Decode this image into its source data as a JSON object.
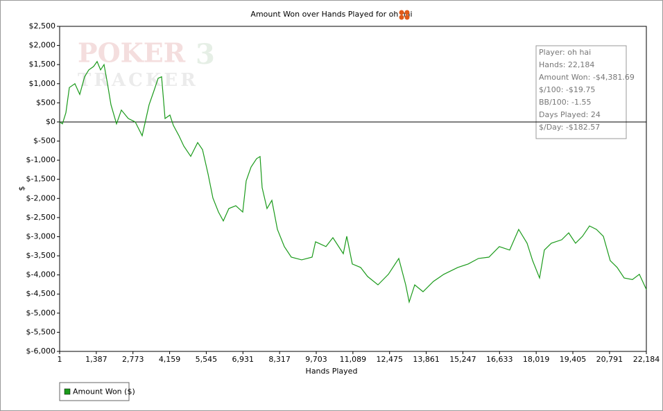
{
  "chart_data": {
    "type": "line",
    "title": "Amount Won over Hands Played for oh hai",
    "xlabel": "Hands Played",
    "ylabel": "$",
    "watermark": [
      "POKER",
      "3",
      "TRACKER"
    ],
    "info_box": [
      "Player: oh hai",
      "Hands: 22,184",
      "Amount Won: -$4,381.69",
      "$/100: -$19.75",
      "BB/100: -1.55",
      "Days Played: 24",
      "$/Day: -$182.57"
    ],
    "xlim": [
      1,
      22184
    ],
    "ylim": [
      -6000,
      2500
    ],
    "xticks": [
      1,
      {
        "value": 1387,
        "label": "1,387"
      },
      {
        "value": 2773,
        "label": "2,773"
      },
      {
        "value": 4159,
        "label": "4,159"
      },
      {
        "value": 5545,
        "label": "5,545"
      },
      {
        "value": 6931,
        "label": "6,931"
      },
      {
        "value": 8317,
        "label": "8,317"
      },
      {
        "value": 9703,
        "label": "9,703"
      },
      {
        "value": 11089,
        "label": "11,089"
      },
      {
        "value": 12475,
        "label": "12,475"
      },
      {
        "value": 13861,
        "label": "13,861"
      },
      {
        "value": 15247,
        "label": "15,247"
      },
      {
        "value": 16633,
        "label": "16,633"
      },
      {
        "value": 18019,
        "label": "18,019"
      },
      {
        "value": 19405,
        "label": "19,405"
      },
      {
        "value": 20791,
        "label": "20,791"
      },
      {
        "value": 22184,
        "label": "22,184"
      }
    ],
    "yticks": [
      {
        "value": 2500,
        "label": "$2,500"
      },
      {
        "value": 2000,
        "label": "$2,000"
      },
      {
        "value": 1500,
        "label": "$1,500"
      },
      {
        "value": 1000,
        "label": "$1,000"
      },
      {
        "value": 500,
        "label": "$500"
      },
      {
        "value": 0,
        "label": "$0"
      },
      {
        "value": -500,
        "label": "$-500"
      },
      {
        "value": -1000,
        "label": "$-1,000"
      },
      {
        "value": -1500,
        "label": "$-1,500"
      },
      {
        "value": -2000,
        "label": "$-2,000"
      },
      {
        "value": -2500,
        "label": "$-2,500"
      },
      {
        "value": -3000,
        "label": "$-3,000"
      },
      {
        "value": -3500,
        "label": "$-3,500"
      },
      {
        "value": -4000,
        "label": "$-4,000"
      },
      {
        "value": -4500,
        "label": "$-4,500"
      },
      {
        "value": -5000,
        "label": "$-5,000"
      },
      {
        "value": -5500,
        "label": "$-5,500"
      },
      {
        "value": -6000,
        "label": "$-6,000"
      }
    ],
    "grid": false,
    "zero_line": true,
    "legend": "bottom-left",
    "x": [
      1,
      106,
      237,
      368,
      578,
      761,
      945,
      1102,
      1286,
      1417,
      1548,
      1679,
      1810,
      1941,
      2151,
      2335,
      2597,
      2859,
      3121,
      3383,
      3567,
      3724,
      3855,
      3986,
      4170,
      4301,
      4511,
      4694,
      4956,
      5218,
      5402,
      5612,
      5796,
      6005,
      6189,
      6399,
      6661,
      6923,
      7054,
      7238,
      7448,
      7579,
      7658,
      7841,
      8025,
      8235,
      8497,
      8759,
      9152,
      9546,
      9677,
      10070,
      10332,
      10726,
      10857,
      11066,
      11381,
      11643,
      12036,
      12429,
      12822,
      13085,
      13216,
      13425,
      13740,
      14133,
      14526,
      15051,
      15444,
      15837,
      16231,
      16624,
      17017,
      17358,
      17673,
      17883,
      18145,
      18328,
      18591,
      18984,
      19246,
      19508,
      19770,
      20033,
      20295,
      20557,
      20819,
      21081,
      21344,
      21658,
      21920,
      22184
    ],
    "series": [
      {
        "name": "Amount Won ($)",
        "color": "#1a9a1a",
        "values": [
          0,
          -50,
          240,
          900,
          1000,
          720,
          1180,
          1360,
          1450,
          1580,
          1360,
          1500,
          1000,
          450,
          -50,
          310,
          90,
          0,
          -360,
          450,
          815,
          1140,
          1180,
          90,
          180,
          -90,
          -360,
          -630,
          -900,
          -540,
          -725,
          -1360,
          -1990,
          -2355,
          -2590,
          -2265,
          -2190,
          -2355,
          -1540,
          -1180,
          -960,
          -905,
          -1720,
          -2265,
          -2050,
          -2810,
          -3260,
          -3535,
          -3605,
          -3535,
          -3135,
          -3260,
          -3025,
          -3445,
          -2990,
          -3715,
          -3805,
          -4040,
          -4260,
          -3985,
          -3570,
          -4260,
          -4710,
          -4260,
          -4440,
          -4170,
          -3985,
          -3805,
          -3715,
          -3570,
          -3535,
          -3260,
          -3350,
          -2810,
          -3170,
          -3625,
          -4080,
          -3350,
          -3170,
          -3080,
          -2900,
          -3170,
          -2990,
          -2720,
          -2810,
          -2990,
          -3625,
          -3805,
          -4080,
          -4120,
          -3985,
          -4380
        ]
      }
    ]
  }
}
